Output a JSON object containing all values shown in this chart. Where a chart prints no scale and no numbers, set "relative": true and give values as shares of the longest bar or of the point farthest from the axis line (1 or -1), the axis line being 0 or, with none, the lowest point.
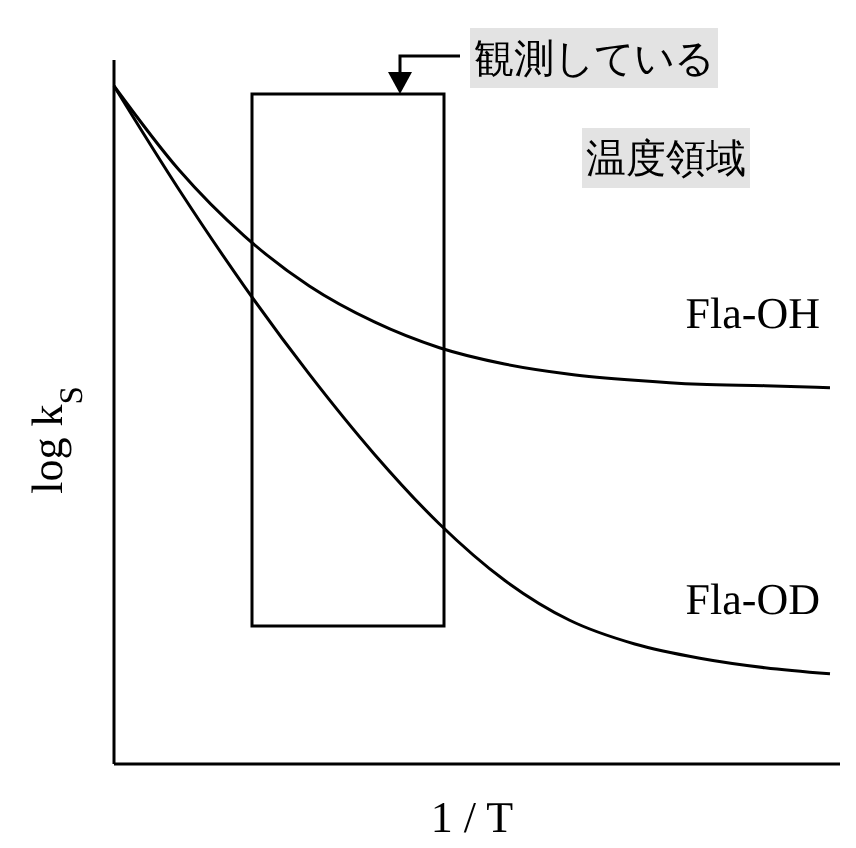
{
  "chart_data": {
    "type": "line",
    "relative": true,
    "xlabel": "1 / T",
    "ylabel": "log k$_{S}$",
    "marker": "none",
    "line_style": "solid",
    "legend": false,
    "annotations": [
      "観測している温度領域"
    ],
    "categories": [
      null,
      null,
      null,
      null,
      null,
      null,
      null,
      null,
      null,
      null,
      null,
      null
    ],
    "series": [
      {
        "name": "Fla-OH",
        "color": "#000000",
        "values": [
          1,
          0.876,
          0.779,
          0.705,
          0.652,
          0.614,
          0.59,
          0.575,
          0.566,
          0.56,
          0.558,
          0.555
        ]
      },
      {
        "name": "Fla-OD",
        "color": "#000000",
        "values": [
          1,
          0.847,
          0.705,
          0.575,
          0.457,
          0.354,
          0.271,
          0.212,
          0.177,
          0.156,
          0.142,
          0.133
        ]
      }
    ]
  }
}
